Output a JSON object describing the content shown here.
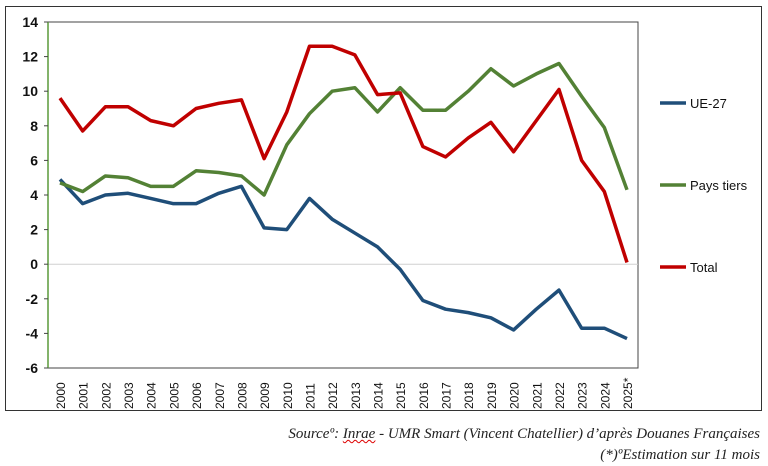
{
  "chart_data": {
    "type": "line",
    "x": [
      "2000",
      "2001",
      "2002",
      "2003",
      "2004",
      "2005",
      "2006",
      "2007",
      "2008",
      "2009",
      "2010",
      "2011",
      "2012",
      "2013",
      "2014",
      "2015",
      "2016",
      "2017",
      "2018",
      "2019",
      "2020",
      "2021",
      "2022",
      "2023",
      "2024",
      "2025*"
    ],
    "ylim": [
      -6,
      14
    ],
    "yticks": [
      -6,
      -4,
      -2,
      0,
      2,
      4,
      6,
      8,
      10,
      12,
      14
    ],
    "legend_placement": "right",
    "grid": false,
    "series": [
      {
        "name": "UE-27",
        "color": "#1f4e79",
        "values": [
          4.9,
          3.5,
          4.0,
          4.1,
          3.8,
          3.5,
          3.5,
          4.1,
          4.5,
          2.1,
          2.0,
          3.8,
          2.6,
          1.8,
          1.0,
          -0.3,
          -2.1,
          -2.6,
          -2.8,
          -3.1,
          -3.8,
          -2.6,
          -1.5,
          -3.7,
          -3.7,
          -4.3
        ]
      },
      {
        "name": "Pays tiers",
        "color": "#538135",
        "values": [
          4.7,
          4.2,
          5.1,
          5.0,
          4.5,
          4.5,
          5.4,
          5.3,
          5.1,
          4.0,
          6.9,
          8.7,
          10.0,
          10.2,
          8.8,
          10.2,
          8.9,
          8.9,
          10.0,
          11.3,
          10.3,
          11.0,
          11.6,
          9.7,
          7.9,
          4.3
        ]
      },
      {
        "name": "Total",
        "color": "#c00000",
        "values": [
          9.6,
          7.7,
          9.1,
          9.1,
          8.3,
          8.0,
          9.0,
          9.3,
          9.5,
          6.1,
          8.8,
          12.6,
          12.6,
          12.1,
          9.8,
          9.9,
          6.8,
          6.2,
          7.3,
          8.2,
          6.5,
          8.3,
          10.1,
          6.0,
          4.2,
          0.1
        ]
      }
    ]
  },
  "caption": {
    "source_prefix": "Sourceº: ",
    "source_org": "Inrae",
    "source_rest": " - UMR Smart (Vincent Chatellier) d’après Douanes Françaises",
    "note": "(*)ºEstimation sur 11 mois"
  }
}
